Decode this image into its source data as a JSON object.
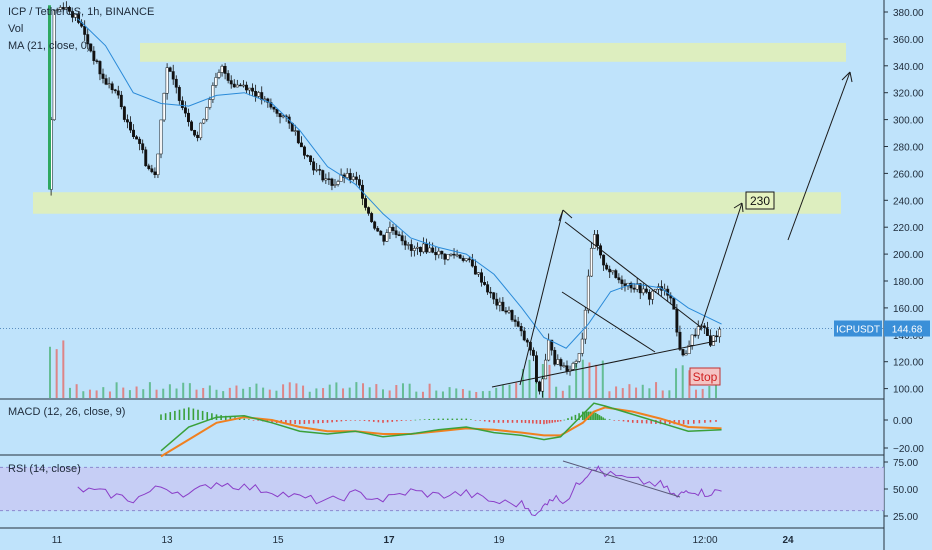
{
  "header": {
    "symbol_line": "ICP / TetherUS, 1h, BINANCE",
    "vol_label": "Vol",
    "ma_label": "MA (21, close, 0)"
  },
  "macd_panel": {
    "label": "MACD (12, 26, close, 9)"
  },
  "rsi_panel": {
    "label": "RSI (14, close)"
  },
  "annotations": {
    "target_label": "230",
    "stop_label": "Stop"
  },
  "price_tag": {
    "symbol": "ICPUSDT",
    "value": "144.68"
  },
  "colors": {
    "background": "#bfe3fb",
    "candle": "#111111",
    "ma_line": "#2a8ad8",
    "zone_fill": "#e2f0b4",
    "macd_line": "#3aa03a",
    "signal_line": "#f08020",
    "rsi_line": "#8a3ec8",
    "rsi_band": "#c8c8f4",
    "volume_bar": "#e07a7a",
    "price_tag": "#3a8fd8"
  },
  "chart_data": [
    {
      "type": "candlestick",
      "title": "ICP / TetherUS, 1h, BINANCE",
      "x_labels": [
        "11",
        "13",
        "15",
        "17",
        "19",
        "21",
        "12:00",
        "24"
      ],
      "y_ticks": [
        "380.00",
        "360.00",
        "340.00",
        "320.00",
        "300.00",
        "280.00",
        "260.00",
        "240.00",
        "220.00",
        "200.00",
        "180.00",
        "160.00",
        "140.00",
        "120.00",
        "100.00"
      ],
      "ylim": [
        85,
        393
      ],
      "current_price": 144.68,
      "price_path": [
        [
          0,
          248
        ],
        [
          0.05,
          380
        ],
        [
          0.25,
          385
        ],
        [
          0.5,
          375
        ],
        [
          0.75,
          350
        ],
        [
          0.95,
          330
        ],
        [
          1.2,
          320
        ],
        [
          1.4,
          295
        ],
        [
          1.6,
          285
        ],
        [
          1.75,
          265
        ],
        [
          1.9,
          258
        ],
        [
          2.0,
          300
        ],
        [
          2.1,
          340
        ],
        [
          2.3,
          320
        ],
        [
          2.5,
          300
        ],
        [
          2.65,
          285
        ],
        [
          2.75,
          300
        ],
        [
          2.9,
          320
        ],
        [
          3.0,
          330
        ],
        [
          3.1,
          338
        ],
        [
          3.3,
          326
        ],
        [
          3.5,
          326
        ],
        [
          3.7,
          320
        ],
        [
          3.9,
          312
        ],
        [
          4.0,
          308
        ],
        [
          4.2,
          302
        ],
        [
          4.4,
          292
        ],
        [
          4.6,
          275
        ],
        [
          4.8,
          262
        ],
        [
          5.0,
          255
        ],
        [
          5.1,
          252
        ],
        [
          5.3,
          258
        ],
        [
          5.5,
          255
        ],
        [
          5.6,
          248
        ],
        [
          5.7,
          235
        ],
        [
          5.8,
          225
        ],
        [
          6.0,
          210
        ],
        [
          6.1,
          220
        ],
        [
          6.3,
          215
        ],
        [
          6.5,
          202
        ],
        [
          6.7,
          205
        ],
        [
          6.9,
          203
        ],
        [
          7.1,
          198
        ],
        [
          7.3,
          200
        ],
        [
          7.5,
          196
        ],
        [
          7.8,
          180
        ],
        [
          8.0,
          165
        ],
        [
          8.3,
          155
        ],
        [
          8.5,
          140
        ],
        [
          8.7,
          125
        ],
        [
          8.8,
          95
        ],
        [
          8.9,
          112
        ],
        [
          9.0,
          138
        ],
        [
          9.1,
          120
        ],
        [
          9.2,
          118
        ],
        [
          9.35,
          115
        ],
        [
          9.5,
          122
        ],
        [
          9.6,
          140
        ],
        [
          9.7,
          185
        ],
        [
          9.8,
          215
        ],
        [
          9.9,
          198
        ],
        [
          10.0,
          192
        ],
        [
          10.2,
          182
        ],
        [
          10.4,
          178
        ],
        [
          10.6,
          175
        ],
        [
          10.8,
          168
        ],
        [
          10.9,
          175
        ],
        [
          11.05,
          172
        ],
        [
          11.2,
          170
        ],
        [
          11.3,
          140
        ],
        [
          11.4,
          122
        ],
        [
          11.5,
          132
        ],
        [
          11.6,
          140
        ],
        [
          11.7,
          146
        ],
        [
          11.8,
          142
        ],
        [
          11.9,
          135
        ],
        [
          12.0,
          140
        ],
        [
          12.1,
          144.68
        ]
      ],
      "ma_path": [
        [
          0.5,
          375
        ],
        [
          1.0,
          355
        ],
        [
          1.5,
          320
        ],
        [
          2.0,
          312
        ],
        [
          2.5,
          310
        ],
        [
          3.0,
          318
        ],
        [
          3.5,
          320
        ],
        [
          4.0,
          312
        ],
        [
          4.5,
          292
        ],
        [
          5.0,
          265
        ],
        [
          5.5,
          252
        ],
        [
          6.0,
          230
        ],
        [
          6.5,
          212
        ],
        [
          7.0,
          205
        ],
        [
          7.5,
          200
        ],
        [
          8.0,
          185
        ],
        [
          8.5,
          160
        ],
        [
          8.9,
          138
        ],
        [
          9.3,
          130
        ],
        [
          9.7,
          148
        ],
        [
          10.1,
          172
        ],
        [
          10.5,
          178
        ],
        [
          11.0,
          175
        ],
        [
          11.5,
          160
        ],
        [
          12.1,
          148
        ]
      ],
      "zones": [
        {
          "from": 343,
          "to": 357
        },
        {
          "from": 230,
          "to": 246
        }
      ]
    },
    {
      "type": "line",
      "title": "MACD (12, 26, close, 9)",
      "y_ticks": [
        "0.00",
        "−20.00"
      ],
      "series": [
        {
          "name": "MACD",
          "values": [
            [
              2.0,
              -22
            ],
            [
              2.5,
              -5
            ],
            [
              3.0,
              2
            ],
            [
              3.5,
              3
            ],
            [
              4.0,
              -2
            ],
            [
              4.5,
              -8
            ],
            [
              5.0,
              -10
            ],
            [
              5.5,
              -8
            ],
            [
              6.0,
              -12
            ],
            [
              6.5,
              -10
            ],
            [
              7.0,
              -7
            ],
            [
              7.5,
              -5
            ],
            [
              8.0,
              -9
            ],
            [
              8.5,
              -11
            ],
            [
              8.9,
              -14
            ],
            [
              9.2,
              -12
            ],
            [
              9.6,
              4
            ],
            [
              9.8,
              12
            ],
            [
              10.0,
              10
            ],
            [
              10.5,
              4
            ],
            [
              11.0,
              -2
            ],
            [
              11.5,
              -8
            ],
            [
              12.1,
              -7
            ]
          ]
        },
        {
          "name": "Signal",
          "values": [
            [
              2.0,
              -26
            ],
            [
              2.5,
              -14
            ],
            [
              3.0,
              -2
            ],
            [
              3.5,
              2
            ],
            [
              4.0,
              0
            ],
            [
              4.5,
              -5
            ],
            [
              5.0,
              -8
            ],
            [
              5.5,
              -8
            ],
            [
              6.0,
              -10
            ],
            [
              6.5,
              -10
            ],
            [
              7.0,
              -8
            ],
            [
              7.5,
              -6
            ],
            [
              8.0,
              -7
            ],
            [
              8.5,
              -9
            ],
            [
              8.9,
              -11
            ],
            [
              9.2,
              -11
            ],
            [
              9.6,
              -2
            ],
            [
              9.8,
              6
            ],
            [
              10.0,
              9
            ],
            [
              10.5,
              6
            ],
            [
              11.0,
              1
            ],
            [
              11.5,
              -5
            ],
            [
              12.1,
              -6
            ]
          ]
        }
      ]
    },
    {
      "type": "line",
      "title": "RSI (14, close)",
      "y_ticks": [
        "75.00",
        "50.00",
        "25.00"
      ],
      "band": [
        30,
        70
      ],
      "series": [
        {
          "name": "RSI",
          "values": [
            [
              0.5,
              50
            ],
            [
              1.0,
              46
            ],
            [
              1.5,
              40
            ],
            [
              2.0,
              52
            ],
            [
              2.5,
              45
            ],
            [
              3.0,
              56
            ],
            [
              3.5,
              52
            ],
            [
              4.0,
              48
            ],
            [
              4.5,
              42
            ],
            [
              5.0,
              38
            ],
            [
              5.5,
              46
            ],
            [
              6.0,
              40
            ],
            [
              6.5,
              48
            ],
            [
              7.0,
              44
            ],
            [
              7.5,
              46
            ],
            [
              8.0,
              38
            ],
            [
              8.5,
              36
            ],
            [
              8.8,
              26
            ],
            [
              9.0,
              42
            ],
            [
              9.3,
              40
            ],
            [
              9.6,
              60
            ],
            [
              9.8,
              71
            ],
            [
              10.0,
              64
            ],
            [
              10.5,
              58
            ],
            [
              11.0,
              54
            ],
            [
              11.3,
              42
            ],
            [
              11.5,
              50
            ],
            [
              11.8,
              46
            ],
            [
              12.1,
              48
            ]
          ]
        }
      ]
    }
  ]
}
